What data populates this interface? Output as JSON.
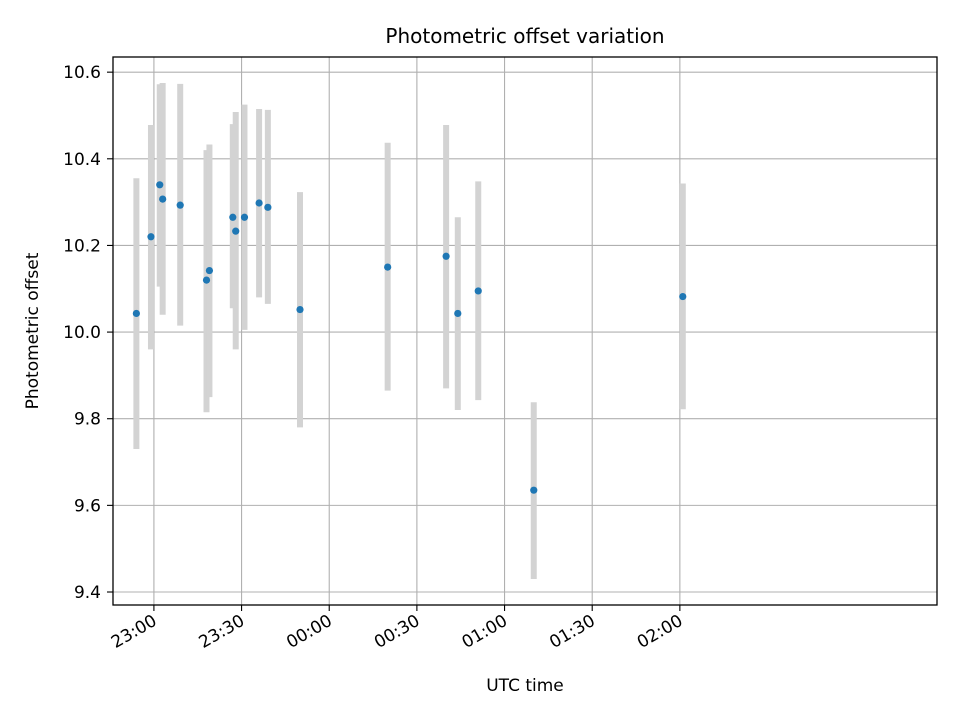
{
  "chart_data": {
    "type": "scatter",
    "title": "Photometric offset variation",
    "xlabel": "UTC time",
    "ylabel": "Photometric offset",
    "x_axis_type": "time",
    "xlim": [
      "22:44",
      "03:26"
    ],
    "ylim": [
      9.37,
      10.635
    ],
    "xticks": [
      {
        "t": "22:58",
        "label": "23:00"
      },
      {
        "t": "23:28",
        "label": "23:30"
      },
      {
        "t": "23:58",
        "label": "00:00"
      },
      {
        "t": "00:28",
        "label": "00:30"
      },
      {
        "t": "00:58",
        "label": "01:00"
      },
      {
        "t": "01:28",
        "label": "01:30"
      },
      {
        "t": "01:58",
        "label": "02:00"
      }
    ],
    "yticks": [
      {
        "v": 9.4,
        "label": "9.4"
      },
      {
        "v": 9.6,
        "label": "9.6"
      },
      {
        "v": 9.8,
        "label": "9.8"
      },
      {
        "v": 10.0,
        "label": "10.0"
      },
      {
        "v": 10.2,
        "label": "10.2"
      },
      {
        "v": 10.4,
        "label": "10.4"
      },
      {
        "v": 10.6,
        "label": "10.6"
      }
    ],
    "grid": true,
    "colors": {
      "point": "#1f77b4",
      "errorbar": "#d3d3d3",
      "grid": "#b0b0b0"
    },
    "points": [
      {
        "t": "22:52",
        "y": 10.043,
        "ylow": 9.73,
        "yhigh": 10.355
      },
      {
        "t": "22:57",
        "y": 10.22,
        "ylow": 9.96,
        "yhigh": 10.478
      },
      {
        "t": "23:00",
        "y": 10.34,
        "ylow": 10.105,
        "yhigh": 10.572
      },
      {
        "t": "23:01",
        "y": 10.307,
        "ylow": 10.04,
        "yhigh": 10.575
      },
      {
        "t": "23:07",
        "y": 10.293,
        "ylow": 10.015,
        "yhigh": 10.573
      },
      {
        "t": "23:16",
        "y": 10.12,
        "ylow": 9.815,
        "yhigh": 10.42
      },
      {
        "t": "23:17",
        "y": 10.142,
        "ylow": 9.85,
        "yhigh": 10.433
      },
      {
        "t": "23:25",
        "y": 10.265,
        "ylow": 10.055,
        "yhigh": 10.48
      },
      {
        "t": "23:26",
        "y": 10.233,
        "ylow": 9.96,
        "yhigh": 10.508
      },
      {
        "t": "23:29",
        "y": 10.265,
        "ylow": 10.005,
        "yhigh": 10.525
      },
      {
        "t": "23:34",
        "y": 10.298,
        "ylow": 10.08,
        "yhigh": 10.515
      },
      {
        "t": "23:37",
        "y": 10.288,
        "ylow": 10.065,
        "yhigh": 10.513
      },
      {
        "t": "23:48",
        "y": 10.052,
        "ylow": 9.78,
        "yhigh": 10.323
      },
      {
        "t": "00:18",
        "y": 10.15,
        "ylow": 9.865,
        "yhigh": 10.437
      },
      {
        "t": "00:38",
        "y": 10.175,
        "ylow": 9.87,
        "yhigh": 10.478
      },
      {
        "t": "00:42",
        "y": 10.043,
        "ylow": 9.82,
        "yhigh": 10.265
      },
      {
        "t": "00:49",
        "y": 10.095,
        "ylow": 9.843,
        "yhigh": 10.348
      },
      {
        "t": "01:08",
        "y": 9.635,
        "ylow": 9.43,
        "yhigh": 9.838
      },
      {
        "t": "01:59",
        "y": 10.082,
        "ylow": 9.822,
        "yhigh": 10.343
      }
    ]
  }
}
